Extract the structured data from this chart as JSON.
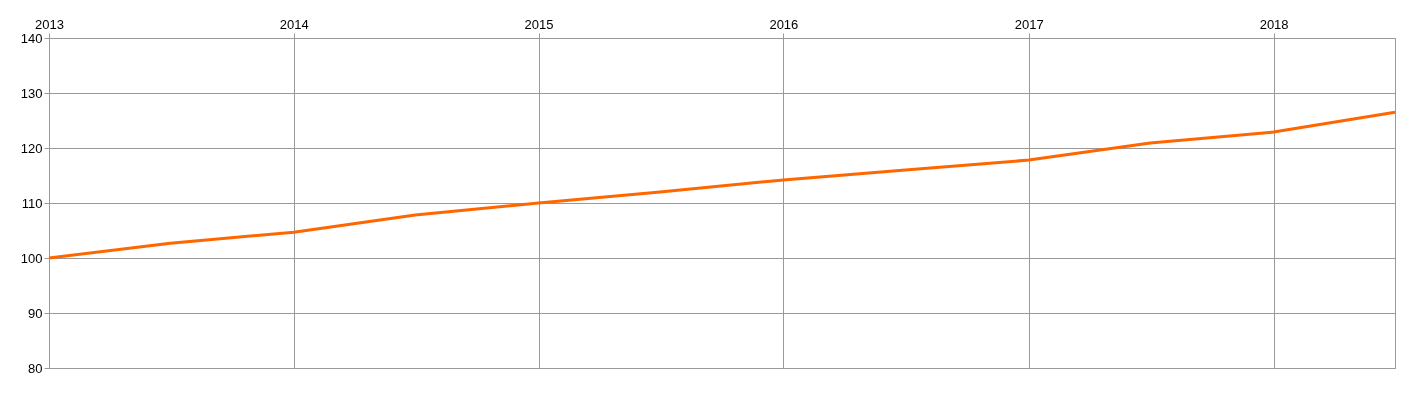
{
  "chart_data": {
    "type": "line",
    "x": [
      "2013",
      "2013-07",
      "2014",
      "2014-07",
      "2015",
      "2015-07",
      "2016",
      "2016-07",
      "2017",
      "2017-07",
      "2018",
      "2018-07"
    ],
    "series": [
      {
        "color": "#ff6600",
        "values": [
          100,
          102.7,
          104.7,
          107.8,
          110,
          112,
          114.2,
          116,
          117.8,
          120.9,
          122.9,
          126.5
        ]
      }
    ],
    "xlim": [
      "2013",
      "2018-07"
    ],
    "xticks": [
      "2013",
      "2014",
      "2015",
      "2016",
      "2017",
      "2018"
    ],
    "ylim": [
      80,
      140
    ],
    "yticks": [
      80,
      90,
      100,
      110,
      120,
      130,
      140
    ],
    "grid": true,
    "marker": "none",
    "line_style": "solid"
  }
}
